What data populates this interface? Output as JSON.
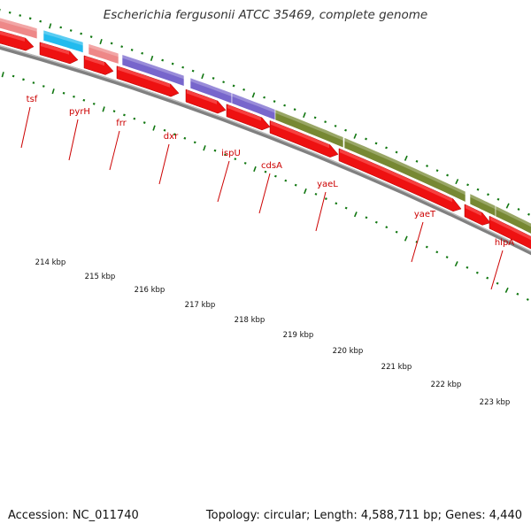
{
  "title": "Escherichia fergusonii ATCC 35469, complete genome",
  "footer": {
    "accession": "Accession: NC_011740",
    "topology": "Topology: circular; Length: 4,588,711 bp; Genes: 4,440"
  },
  "colors": {
    "cds": "#ee1111",
    "gc_salmon": "#ee8888",
    "gc_cyan": "#22bbee",
    "gc_purple": "#7766cc",
    "gc_olive": "#778833",
    "backbone": "#808080",
    "tick": "#117711",
    "label": "#cc0000"
  },
  "kbp_labels": [
    "214 kbp",
    "215 kbp",
    "216 kbp",
    "217 kbp",
    "218 kbp",
    "219 kbp",
    "220 kbp",
    "221 kbp",
    "222 kbp",
    "223 kbp"
  ],
  "genes": [
    {
      "name": "tsf"
    },
    {
      "name": "pyrH"
    },
    {
      "name": "frr"
    },
    {
      "name": "dxr"
    },
    {
      "name": "ispU"
    },
    {
      "name": "cdsA"
    },
    {
      "name": "yaeL"
    },
    {
      "name": "yaeT"
    },
    {
      "name": "hlpA"
    }
  ]
}
